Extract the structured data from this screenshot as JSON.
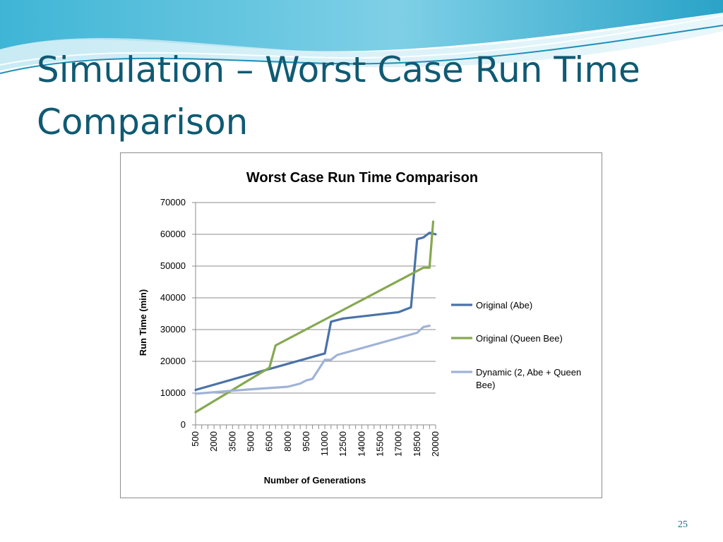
{
  "slide": {
    "title": "Simulation – Worst Case Run Time Comparison",
    "page_number": "25"
  },
  "colors": {
    "title": "#0f5a73",
    "accent_wave": "#2ba9c9",
    "series_abe": "#4a72a8",
    "series_queen_bee": "#86a850",
    "series_dynamic": "#9fb3d6"
  },
  "chart_data": {
    "type": "line",
    "title": "Worst Case Run Time Comparison",
    "xlabel": "Number of Generations",
    "ylabel": "Run Time (min)",
    "ylim": [
      0,
      70000
    ],
    "yticks": [
      0,
      10000,
      20000,
      30000,
      40000,
      50000,
      60000,
      70000
    ],
    "x_tick_labels": [
      "500",
      "2000",
      "3500",
      "5000",
      "6500",
      "8000",
      "9500",
      "11000",
      "12500",
      "14000",
      "15500",
      "17000",
      "18500",
      "20000"
    ],
    "xlim": [
      500,
      20000
    ],
    "grid": "horizontal",
    "legend_position": "right",
    "series": [
      {
        "name": "Original (Abe)",
        "color": "#4a72a8",
        "points": [
          [
            500,
            11000
          ],
          [
            6500,
            17600
          ],
          [
            11000,
            22500
          ],
          [
            11500,
            32500
          ],
          [
            12500,
            33500
          ],
          [
            17000,
            35500
          ],
          [
            18000,
            37000
          ],
          [
            18500,
            58500
          ],
          [
            19000,
            59000
          ],
          [
            19500,
            60500
          ],
          [
            20000,
            60000
          ]
        ]
      },
      {
        "name": "Original (Queen Bee)",
        "color": "#86a850",
        "points": [
          [
            500,
            4000
          ],
          [
            6500,
            18000
          ],
          [
            7000,
            25000
          ],
          [
            19000,
            49500
          ],
          [
            19500,
            49500
          ],
          [
            19800,
            64000
          ]
        ]
      },
      {
        "name": "Dynamic (2, Abe + Queen Bee)",
        "color": "#9fb3d6",
        "points": [
          [
            500,
            9800
          ],
          [
            3000,
            10600
          ],
          [
            5000,
            11200
          ],
          [
            8000,
            12000
          ],
          [
            9000,
            13000
          ],
          [
            9500,
            14000
          ],
          [
            10000,
            14500
          ],
          [
            11000,
            20500
          ],
          [
            11500,
            20500
          ],
          [
            12000,
            22000
          ],
          [
            18500,
            29000
          ],
          [
            19000,
            30800
          ],
          [
            19500,
            31200
          ]
        ]
      }
    ]
  }
}
